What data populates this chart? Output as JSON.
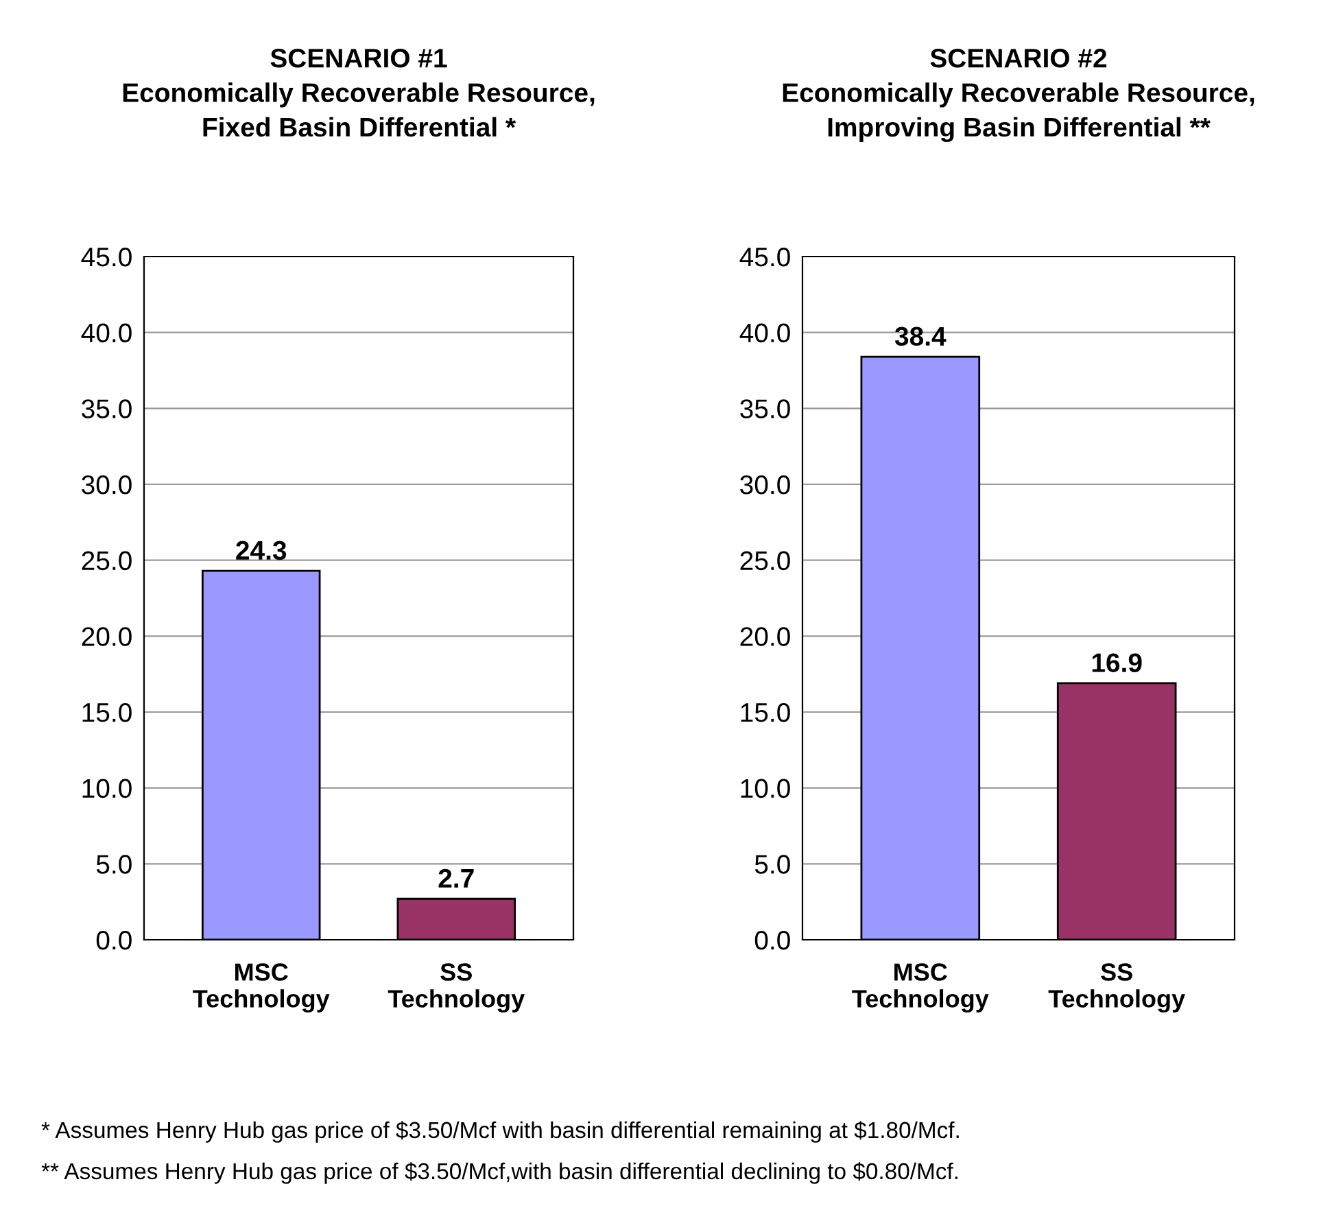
{
  "chart_data": [
    {
      "type": "bar",
      "title": "SCENARIO #1\nEconomically Recoverable Resource,\nFixed Basin Differential *",
      "categories": [
        "MSC\nTechnology",
        "SS\nTechnology"
      ],
      "values": [
        24.3,
        2.7
      ],
      "colors": [
        "#9999ff",
        "#993366"
      ],
      "data_labels": true,
      "ylim": [
        0,
        45
      ],
      "yticks": [
        {
          "value": 0,
          "label": "0.0"
        },
        {
          "value": 5,
          "label": "5.0"
        },
        {
          "value": 10,
          "label": "10.0"
        },
        {
          "value": 15,
          "label": "15.0"
        },
        {
          "value": 20,
          "label": "20.0"
        },
        {
          "value": 25,
          "label": "25.0"
        },
        {
          "value": 30,
          "label": "30.0"
        },
        {
          "value": 35,
          "label": "35.0"
        },
        {
          "value": 40,
          "label": "40.0"
        },
        {
          "value": 45,
          "label": "45.0"
        }
      ],
      "grid": "y",
      "annotations": [
        "* Assumes Henry Hub gas price of $3.50/Mcf with basin differential remaining at $1.80/Mcf.",
        "** Assumes Henry Hub gas price of $3.50/Mcf,with basin differential declining to $0.80/Mcf."
      ]
    },
    {
      "type": "bar",
      "title": "SCENARIO #2\nEconomically Recoverable Resource,\nImproving Basin Differential **",
      "categories": [
        "MSC\nTechnology",
        "SS\nTechnology"
      ],
      "values": [
        38.4,
        16.9
      ],
      "colors": [
        "#9999ff",
        "#993366"
      ],
      "data_labels": true,
      "ylim": [
        0,
        45
      ],
      "yticks": [
        {
          "value": 0,
          "label": "0.0"
        },
        {
          "value": 5,
          "label": "5.0"
        },
        {
          "value": 10,
          "label": "10.0"
        },
        {
          "value": 15,
          "label": "15.0"
        },
        {
          "value": 20,
          "label": "20.0"
        },
        {
          "value": 25,
          "label": "25.0"
        },
        {
          "value": 30,
          "label": "30.0"
        },
        {
          "value": 35,
          "label": "35.0"
        },
        {
          "value": 40,
          "label": "40.0"
        },
        {
          "value": 45,
          "label": "45.0"
        }
      ],
      "grid": "y"
    }
  ]
}
